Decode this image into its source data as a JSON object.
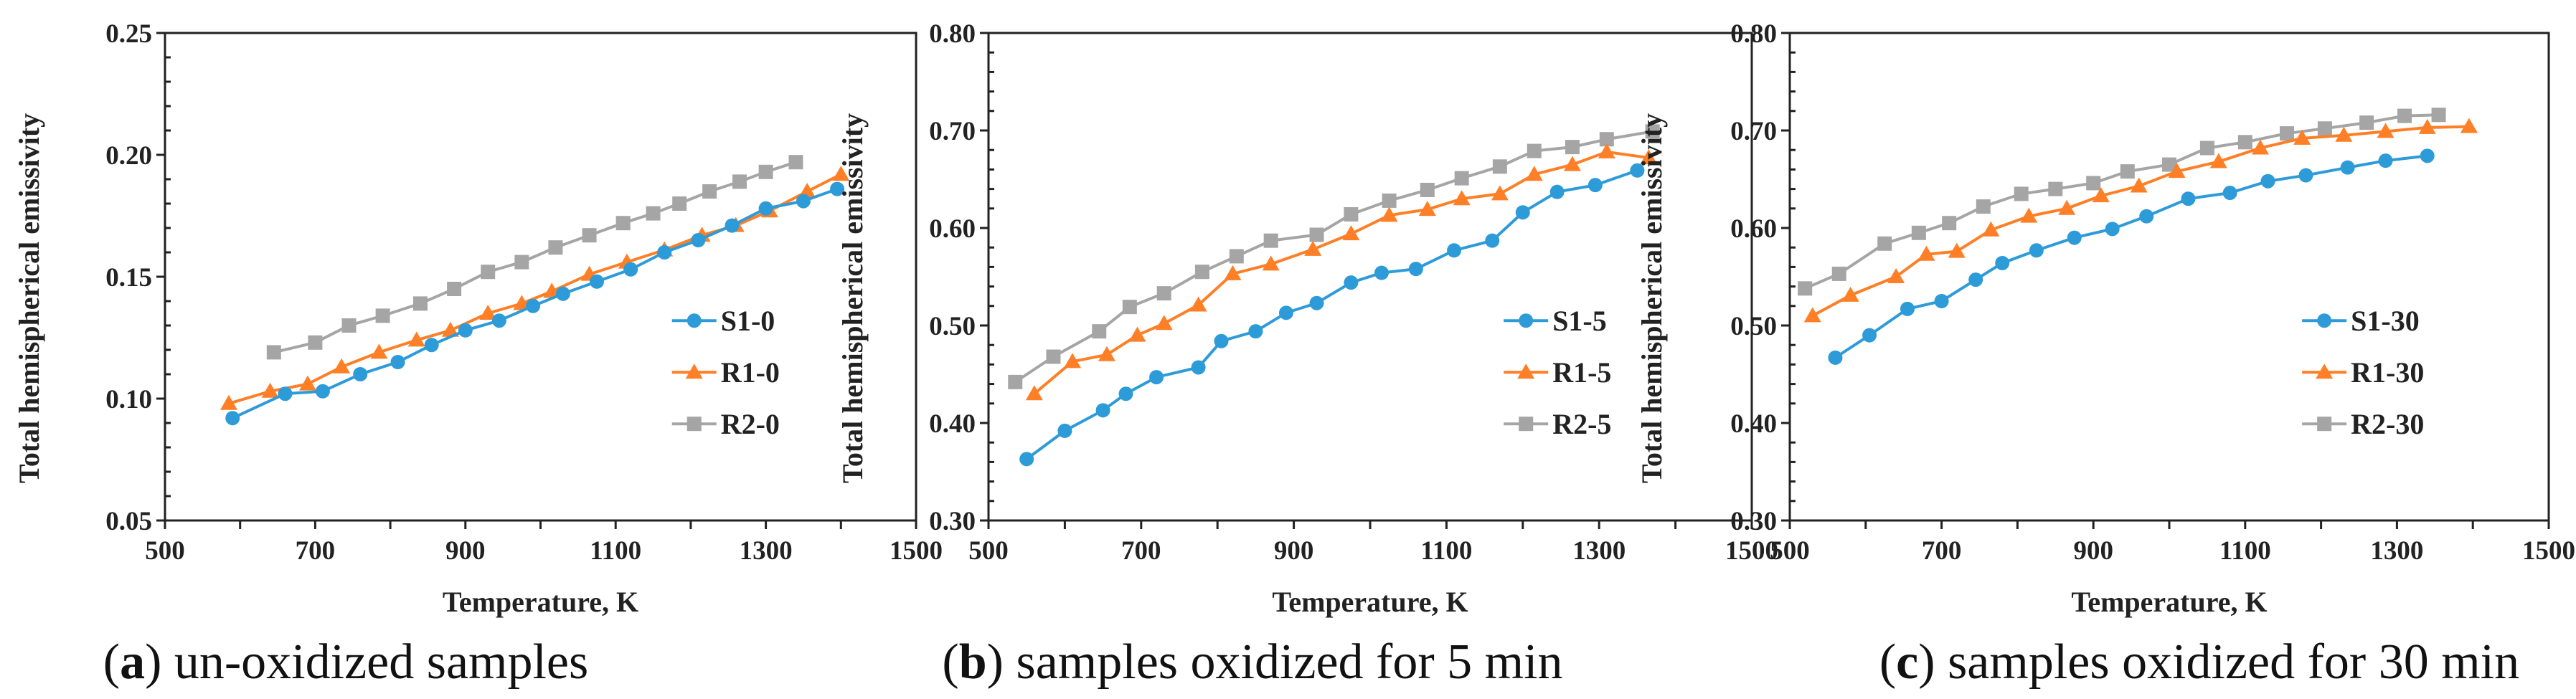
{
  "colors": {
    "S1": "#2e9bd9",
    "R1": "#ff7f27",
    "R2": "#a5a5a5",
    "axis": "#222222"
  },
  "chart_data": [
    {
      "type": "line",
      "caption_letter": "a",
      "caption_text": " un-oxidized samples",
      "caption_open": "(",
      "caption_close": ")",
      "xlabel": "Temperature,   K",
      "ylabel": "Total hemispherical emissivity",
      "xlim": [
        500,
        1500
      ],
      "ylim": [
        0.05,
        0.25
      ],
      "xticks": [
        "500",
        "700",
        "900",
        "1100",
        "1300",
        "1500"
      ],
      "yticks": [
        "0.05",
        "0.10",
        "0.15",
        "0.20",
        "0.25"
      ],
      "legend_position": "center-right",
      "grid": false,
      "series": [
        {
          "name": "S1-0",
          "marker": "circle",
          "color_key": "S1",
          "x": [
            590,
            660,
            710,
            760,
            810,
            855,
            900,
            945,
            990,
            1030,
            1075,
            1120,
            1165,
            1210,
            1255,
            1300,
            1350,
            1395
          ],
          "y": [
            0.092,
            0.102,
            0.103,
            0.11,
            0.115,
            0.122,
            0.128,
            0.132,
            0.138,
            0.143,
            0.148,
            0.153,
            0.16,
            0.165,
            0.171,
            0.178,
            0.181,
            0.186
          ]
        },
        {
          "name": "R1-0",
          "marker": "triangle",
          "color_key": "R1",
          "x": [
            585,
            640,
            690,
            735,
            785,
            835,
            880,
            930,
            975,
            1015,
            1065,
            1115,
            1165,
            1215,
            1260,
            1305,
            1355,
            1400
          ],
          "y": [
            0.098,
            0.103,
            0.106,
            0.113,
            0.119,
            0.124,
            0.128,
            0.135,
            0.139,
            0.144,
            0.151,
            0.156,
            0.161,
            0.167,
            0.171,
            0.177,
            0.185,
            0.192
          ]
        },
        {
          "name": "R2-0",
          "marker": "square",
          "color_key": "R2",
          "x": [
            645,
            700,
            745,
            790,
            840,
            885,
            930,
            975,
            1020,
            1065,
            1110,
            1150,
            1185,
            1225,
            1265,
            1300,
            1340
          ],
          "y": [
            0.119,
            0.123,
            0.13,
            0.134,
            0.139,
            0.145,
            0.152,
            0.156,
            0.162,
            0.167,
            0.172,
            0.176,
            0.18,
            0.185,
            0.189,
            0.193,
            0.197
          ]
        }
      ]
    },
    {
      "type": "line",
      "caption_letter": "b",
      "caption_text": " samples oxidized for 5 min",
      "caption_open": "(",
      "caption_close": ")",
      "xlabel": "Temperature,   K",
      "ylabel": "Total hemispherical emissivity",
      "xlim": [
        500,
        1500
      ],
      "ylim": [
        0.3,
        0.8
      ],
      "xticks": [
        "500",
        "700",
        "900",
        "1100",
        "1300",
        "1500"
      ],
      "yticks": [
        "0.30",
        "0.40",
        "0.50",
        "0.60",
        "0.70",
        "0.80"
      ],
      "legend_position": "center-right",
      "grid": false,
      "series": [
        {
          "name": "S1-5",
          "marker": "circle",
          "color_key": "S1",
          "x": [
            550,
            600,
            650,
            680,
            720,
            775,
            805,
            850,
            890,
            930,
            975,
            1015,
            1060,
            1110,
            1160,
            1200,
            1245,
            1295,
            1350
          ],
          "y": [
            0.363,
            0.392,
            0.413,
            0.43,
            0.447,
            0.457,
            0.484,
            0.494,
            0.513,
            0.523,
            0.544,
            0.554,
            0.558,
            0.577,
            0.587,
            0.616,
            0.637,
            0.644,
            0.659
          ]
        },
        {
          "name": "R1-5",
          "marker": "triangle",
          "color_key": "R1",
          "x": [
            560,
            610,
            655,
            695,
            730,
            775,
            820,
            870,
            925,
            975,
            1025,
            1075,
            1120,
            1170,
            1215,
            1265,
            1310,
            1365
          ],
          "y": [
            0.43,
            0.463,
            0.47,
            0.49,
            0.502,
            0.521,
            0.553,
            0.563,
            0.578,
            0.594,
            0.613,
            0.619,
            0.63,
            0.635,
            0.655,
            0.665,
            0.678,
            0.672
          ]
        },
        {
          "name": "R2-5",
          "marker": "square",
          "color_key": "R2",
          "x": [
            535,
            585,
            645,
            685,
            730,
            780,
            825,
            870,
            930,
            975,
            1025,
            1075,
            1120,
            1170,
            1215,
            1265,
            1310,
            1370
          ],
          "y": [
            0.442,
            0.468,
            0.494,
            0.519,
            0.533,
            0.555,
            0.571,
            0.587,
            0.593,
            0.614,
            0.628,
            0.639,
            0.651,
            0.663,
            0.679,
            0.683,
            0.691,
            0.699
          ]
        }
      ]
    },
    {
      "type": "line",
      "caption_letter": "c",
      "caption_text": " samples oxidized for 30 min",
      "caption_open": "(",
      "caption_close": ")",
      "xlabel": "Temperature,   K",
      "ylabel": "Total hemispherical emissivity",
      "xlim": [
        500,
        1500
      ],
      "ylim": [
        0.3,
        0.8
      ],
      "xticks": [
        "500",
        "700",
        "900",
        "1100",
        "1300",
        "1500"
      ],
      "yticks": [
        "0.30",
        "0.40",
        "0.50",
        "0.60",
        "0.70",
        "0.80"
      ],
      "legend_position": "center-right",
      "grid": false,
      "series": [
        {
          "name": "S1-30",
          "marker": "circle",
          "color_key": "S1",
          "x": [
            560,
            605,
            655,
            700,
            745,
            780,
            825,
            875,
            925,
            970,
            1025,
            1080,
            1130,
            1180,
            1235,
            1285,
            1340
          ],
          "y": [
            0.467,
            0.49,
            0.517,
            0.525,
            0.547,
            0.564,
            0.577,
            0.59,
            0.599,
            0.612,
            0.63,
            0.636,
            0.648,
            0.654,
            0.662,
            0.669,
            0.674
          ]
        },
        {
          "name": "R1-30",
          "marker": "triangle",
          "color_key": "R1",
          "x": [
            530,
            580,
            640,
            680,
            720,
            765,
            815,
            865,
            910,
            960,
            1010,
            1065,
            1120,
            1175,
            1230,
            1285,
            1340,
            1395
          ],
          "y": [
            0.51,
            0.531,
            0.55,
            0.573,
            0.576,
            0.598,
            0.612,
            0.62,
            0.633,
            0.643,
            0.658,
            0.668,
            0.682,
            0.692,
            0.695,
            0.699,
            0.703,
            0.704
          ]
        },
        {
          "name": "R2-30",
          "marker": "square",
          "color_key": "R2",
          "x": [
            520,
            565,
            625,
            670,
            710,
            755,
            805,
            850,
            900,
            945,
            1000,
            1050,
            1100,
            1155,
            1205,
            1260,
            1310,
            1355
          ],
          "y": [
            0.538,
            0.553,
            0.584,
            0.595,
            0.605,
            0.622,
            0.635,
            0.64,
            0.646,
            0.658,
            0.665,
            0.682,
            0.688,
            0.697,
            0.702,
            0.708,
            0.715,
            0.716
          ]
        }
      ]
    }
  ]
}
